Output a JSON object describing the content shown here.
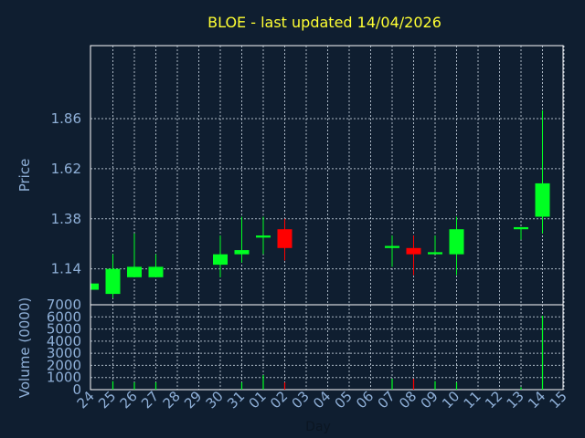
{
  "chart_data": {
    "type": "candlestick",
    "title": "BLOE - last updated 14/04/2026",
    "xlabel": "Day",
    "price_axis": {
      "label": "Price",
      "ticks": [
        "1.14",
        "1.38",
        "1.62",
        "1.86"
      ],
      "tick_values": [
        1.14,
        1.38,
        1.62,
        1.86
      ],
      "range": [
        0.968,
        2.21
      ]
    },
    "volume_axis": {
      "label": "Volume (0000)",
      "ticks": [
        "0",
        "1000",
        "2000",
        "3000",
        "4000",
        "5000",
        "6000",
        "7000"
      ],
      "tick_values": [
        0,
        1000,
        2000,
        3000,
        4000,
        5000,
        6000,
        7000
      ],
      "range": [
        0,
        7000
      ]
    },
    "x_ticks": [
      "24",
      "25",
      "26",
      "27",
      "28",
      "29",
      "30",
      "31",
      "01",
      "02",
      "03",
      "04",
      "05",
      "06",
      "07",
      "08",
      "09",
      "10",
      "11",
      "12",
      "13",
      "14",
      "15"
    ],
    "colors": {
      "up": "#00ff22",
      "down": "#ff0000"
    },
    "grid": true,
    "candles": [
      {
        "day": "24",
        "open": 1.04,
        "high": 1.07,
        "low": 1.04,
        "close": 1.07,
        "volume": 0
      },
      {
        "day": "25",
        "open": 1.02,
        "high": 1.21,
        "low": 1.0,
        "close": 1.14,
        "volume": 700
      },
      {
        "day": "26",
        "open": 1.1,
        "high": 1.31,
        "low": 1.1,
        "close": 1.15,
        "volume": 600
      },
      {
        "day": "27",
        "open": 1.1,
        "high": 1.21,
        "low": 1.1,
        "close": 1.15,
        "volume": 600
      },
      {
        "day": "30",
        "open": 1.16,
        "high": 1.3,
        "low": 1.1,
        "close": 1.21,
        "volume": 0
      },
      {
        "day": "31",
        "open": 1.21,
        "high": 1.39,
        "low": 1.17,
        "close": 1.23,
        "volume": 600
      },
      {
        "day": "01",
        "open": 1.29,
        "high": 1.39,
        "low": 1.21,
        "close": 1.3,
        "volume": 1200
      },
      {
        "day": "02",
        "open": 1.33,
        "high": 1.38,
        "low": 1.18,
        "close": 1.24,
        "volume": 600
      },
      {
        "day": "07",
        "open": 1.24,
        "high": 1.3,
        "low": 1.15,
        "close": 1.25,
        "volume": 900
      },
      {
        "day": "08",
        "open": 1.24,
        "high": 1.3,
        "low": 1.11,
        "close": 1.21,
        "volume": 900
      },
      {
        "day": "09",
        "open": 1.21,
        "high": 1.3,
        "low": 1.21,
        "close": 1.22,
        "volume": 700
      },
      {
        "day": "10",
        "open": 1.21,
        "high": 1.39,
        "low": 1.11,
        "close": 1.33,
        "volume": 600
      },
      {
        "day": "13",
        "open": 1.33,
        "high": 1.34,
        "low": 1.28,
        "close": 1.34,
        "volume": 200
      },
      {
        "day": "14",
        "open": 1.39,
        "high": 1.9,
        "low": 1.31,
        "close": 1.55,
        "volume": 6100
      }
    ]
  }
}
